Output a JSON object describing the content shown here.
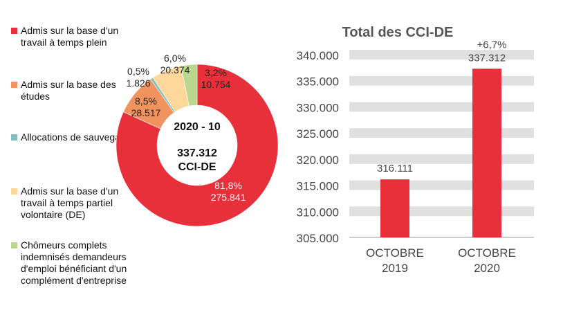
{
  "chart_data": [
    {
      "type": "pie",
      "variant": "donut",
      "center_text": {
        "line1": "2020 - 10",
        "line2": "337.312",
        "line3": "CCI-DE"
      },
      "legend_position": "left",
      "slices": [
        {
          "name": "Admis sur la base d'un travail à temps plein",
          "value": 275841,
          "value_label": "275.841",
          "percent_label": "81,8%",
          "color": "#E8303A",
          "label_color": "#ffffff"
        },
        {
          "name": "Admis sur la base des études",
          "value": 28517,
          "value_label": "28.517",
          "percent_label": "8,5%",
          "color": "#F0935E",
          "label_color": "#222222"
        },
        {
          "name": "Allocations de sauvegarde",
          "value": 1826,
          "value_label": "1.826",
          "percent_label": "0,5%",
          "color": "#7FBFC0",
          "label_color": "#222222"
        },
        {
          "name": "Admis sur la base d'un travail à temps partiel volontaire (DE)",
          "value": 20374,
          "value_label": "20.374",
          "percent_label": "6,0%",
          "color": "#FDD89A",
          "label_color": "#222222"
        },
        {
          "name": "Chômeurs complets indemnisés demandeurs d'emploi bénéficiant d'un complément d'entreprise",
          "value": 10754,
          "value_label": "10.754",
          "percent_label": "3,2%",
          "color": "#B9D78F",
          "label_color": "#222222"
        }
      ]
    },
    {
      "type": "bar",
      "title": "Total des CCI-DE",
      "categories": [
        "OCTOBRE 2019",
        "OCTOBRE 2020"
      ],
      "category_lines": [
        [
          "OCTOBRE",
          "2019"
        ],
        [
          "OCTOBRE",
          "2020"
        ]
      ],
      "values": [
        316111,
        337312
      ],
      "data_labels": [
        "316.111",
        "337.312"
      ],
      "annotations": [
        "",
        "+6,7%"
      ],
      "ylim": [
        305000,
        340000
      ],
      "yticks": [
        305000,
        310000,
        315000,
        320000,
        325000,
        330000,
        335000,
        340000
      ],
      "ytick_labels": [
        "305.000",
        "310.000",
        "315.000",
        "320.000",
        "325.000",
        "330.000",
        "335.000",
        "340.000"
      ],
      "grid": true,
      "bar_color": "#E8303A",
      "grid_color": "#E0E0E0"
    }
  ]
}
